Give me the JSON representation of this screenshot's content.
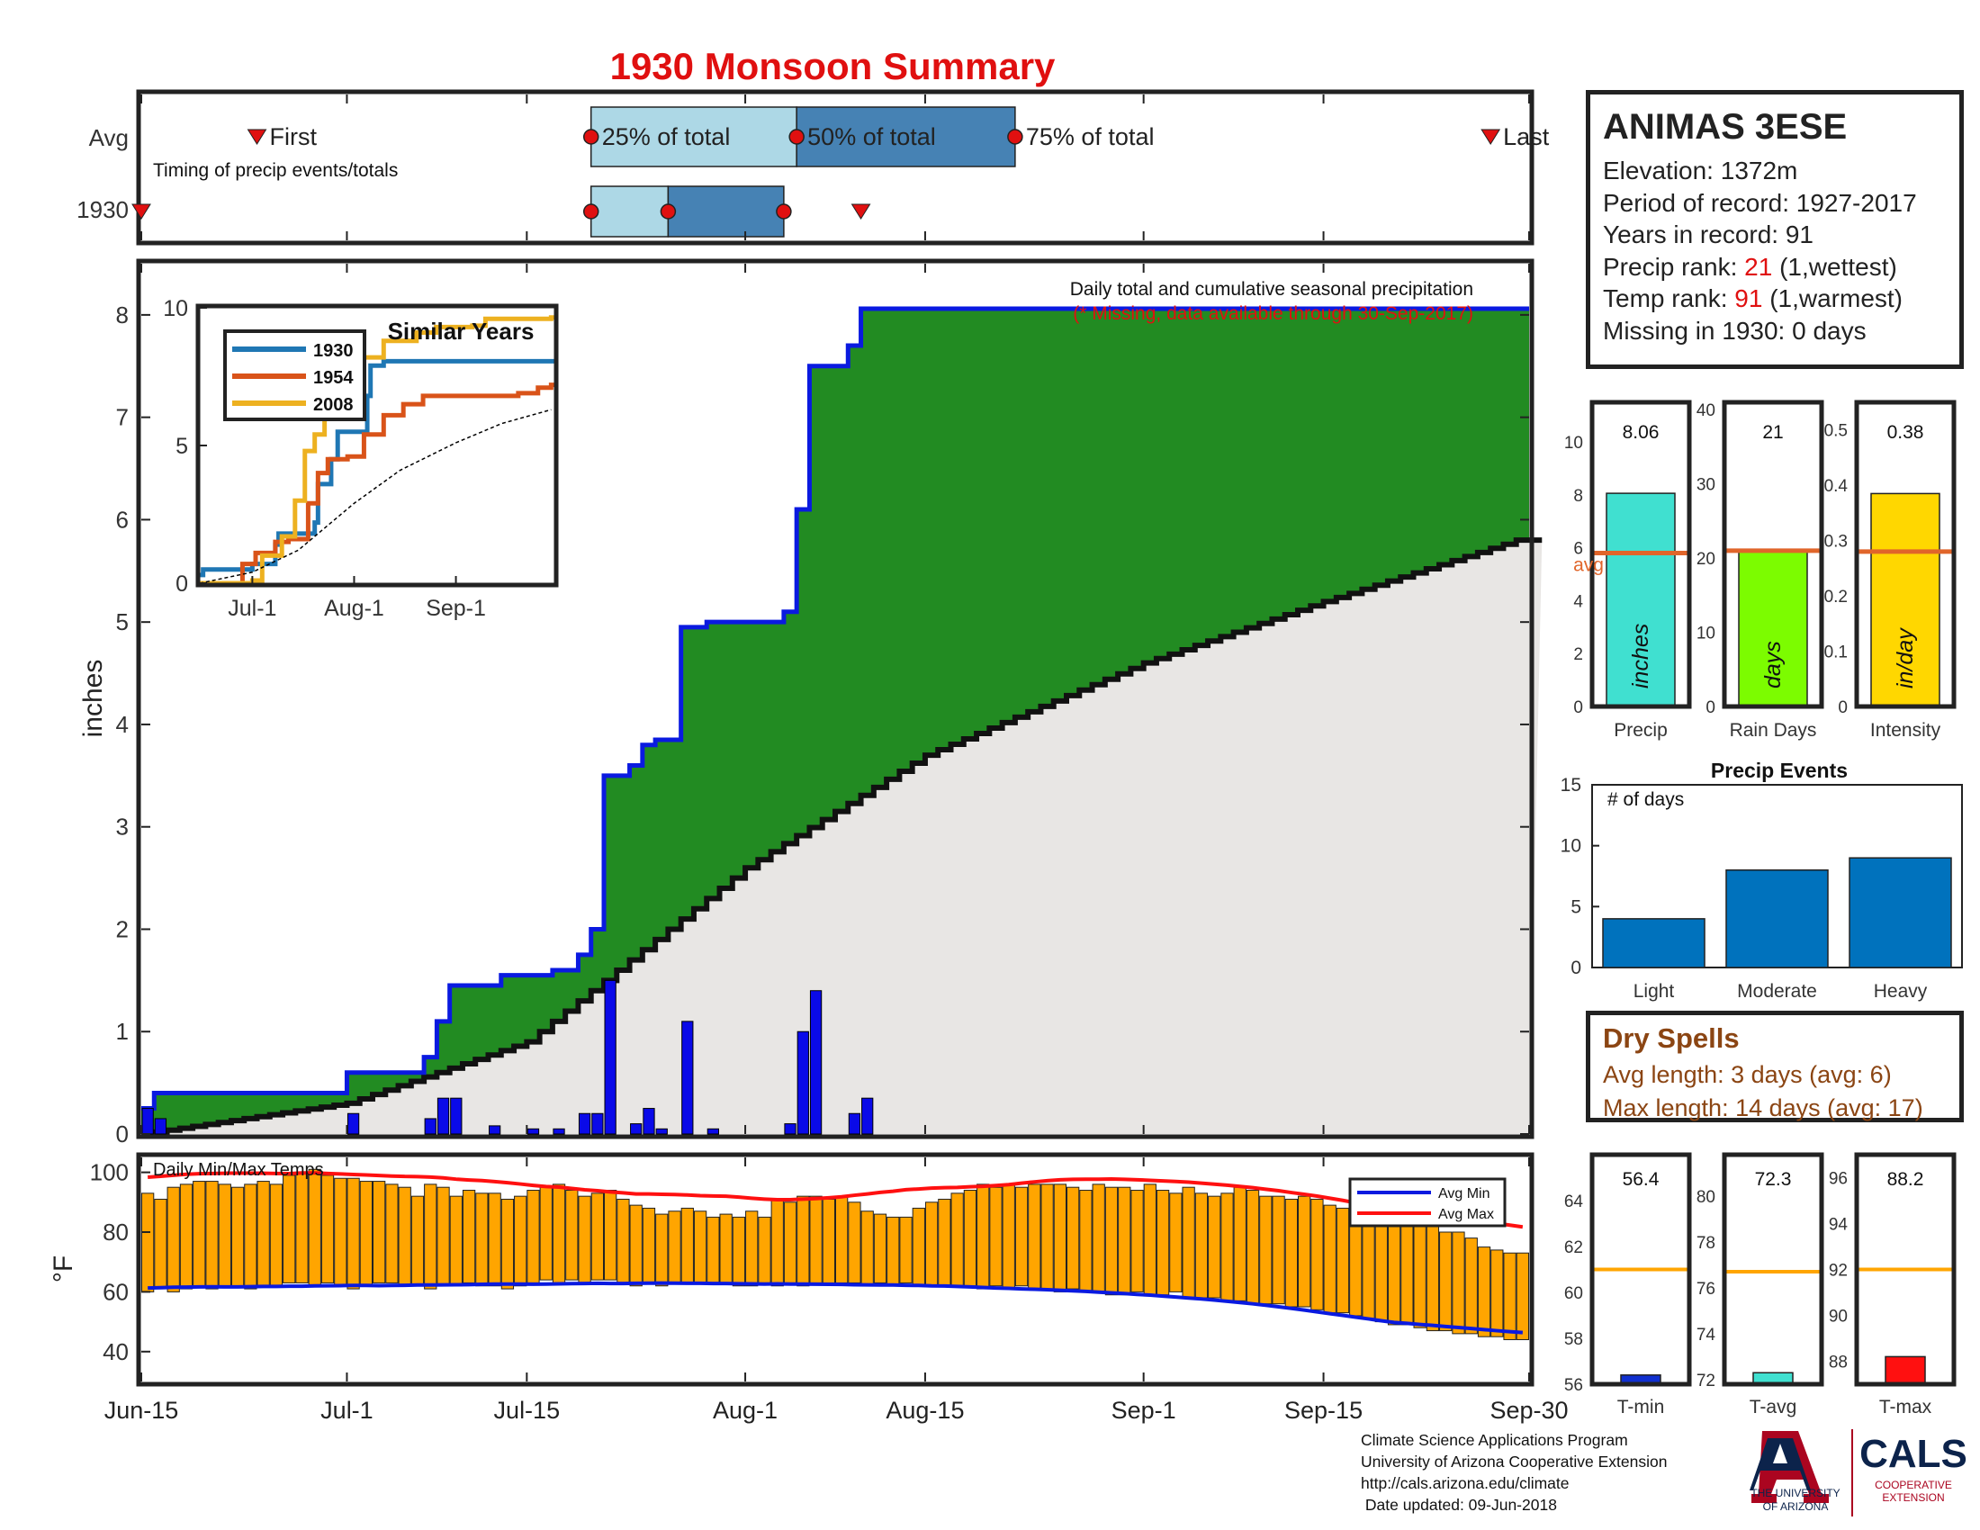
{
  "title": "1930 Monsoon Summary",
  "timing_panel": {
    "row_labels": [
      "Avg",
      "1930"
    ],
    "caption": "Timing of precip events/totals",
    "first_label": "First",
    "last_label": "Last",
    "pct_labels": [
      "25% of total",
      "50% of total",
      "75% of total"
    ],
    "avg": {
      "first": "2017-06-24",
      "p25": "2017-07-20",
      "p50": "2017-08-05",
      "p75": "2017-08-22",
      "last": "2017-09-28"
    },
    "year": {
      "first": "2017-06-15",
      "p25": "2017-07-20",
      "p50": "2017-07-26",
      "p75": "2017-08-04",
      "last": "2017-08-10"
    }
  },
  "station": {
    "name": "ANIMAS 3ESE",
    "elevation_label": "Elevation: 1372m",
    "period_label": "Period of record: 1927-2017",
    "years_label": "Years in record: 91",
    "precip_rank_prefix": "Precip rank: ",
    "precip_rank": "21",
    "precip_rank_suffix": " (1,wettest)",
    "temp_rank_prefix": "Temp rank: ",
    "temp_rank": "91",
    "temp_rank_suffix": " (1,warmest)",
    "missing_label": "Missing in 1930: 0 days"
  },
  "main_panel": {
    "ylabel": "inches",
    "caption": "Daily total and cumulative seasonal precipitation",
    "caption_missing": "(* Missing, data available through 30-Sep-2017)",
    "ylim": [
      0,
      8.5
    ],
    "yticks": [
      0,
      1,
      2,
      3,
      4,
      5,
      6,
      7,
      8
    ]
  },
  "inset": {
    "title": "Similar Years",
    "yticks": [
      0,
      5,
      10
    ],
    "xticks": [
      "Jul-1",
      "Aug-1",
      "Sep-1"
    ],
    "legend": [
      "1930",
      "1954",
      "2008"
    ]
  },
  "temp_panel": {
    "caption": "Daily Min/Max Temps",
    "ylabel": "°F",
    "yticks": [
      40,
      60,
      80,
      100
    ],
    "ylim": [
      30,
      105
    ],
    "legend": [
      "Avg Min",
      "Avg Max"
    ]
  },
  "x_axis": {
    "ticks": [
      "Jun-15",
      "Jul-1",
      "Jul-15",
      "Aug-1",
      "Aug-15",
      "Sep-1",
      "Sep-15",
      "Sep-30"
    ]
  },
  "stat_bars": [
    {
      "value_label": "8.06",
      "value": 8.06,
      "avg": 5.8,
      "ylim": [
        0,
        11.5
      ],
      "yticks": [
        "0",
        "2",
        "4",
        "6",
        "8",
        "10"
      ],
      "unit": "inches",
      "xlabel": "Precip",
      "avg_label": "avg",
      "color": "#40e0d0"
    },
    {
      "value_label": "21",
      "value": 21,
      "avg": 21,
      "ylim": [
        0,
        41
      ],
      "yticks": [
        "0",
        "10",
        "20",
        "30",
        "40"
      ],
      "unit": "days",
      "xlabel": "Rain Days",
      "color": "#7cfc00"
    },
    {
      "value_label": "0.38",
      "value": 0.385,
      "avg": 0.28,
      "ylim": [
        0,
        0.55
      ],
      "yticks": [
        "0",
        "0.1",
        "0.2",
        "0.3",
        "0.4",
        "0.5"
      ],
      "unit": "in/day",
      "xlabel": "Intensity",
      "color": "#ffd700"
    }
  ],
  "precip_events": {
    "title": "Precip Events",
    "ylabel_note": "# of days",
    "categories": [
      "Light",
      "Moderate",
      "Heavy"
    ],
    "values": [
      4,
      8,
      9
    ],
    "yticks": [
      0,
      5,
      10,
      15
    ]
  },
  "dry_spells": {
    "title": "Dry Spells",
    "avg_line": "Avg length: 3 days (avg: 6)",
    "max_line": "Max length: 14 days (avg: 17)"
  },
  "temp_bars": [
    {
      "value_label": "56.4",
      "value": 56.4,
      "avg": 61.0,
      "ylim": [
        56,
        66
      ],
      "yticks": [
        "56",
        "58",
        "60",
        "62",
        "64"
      ],
      "xlabel": "T-min",
      "color": "#1030d0"
    },
    {
      "value_label": "72.3",
      "value": 72.3,
      "avg": 76.7,
      "ylim": [
        71.8,
        81.8
      ],
      "yticks": [
        "72",
        "74",
        "76",
        "78",
        "80"
      ],
      "xlabel": "T-avg",
      "color": "#40e0d0"
    },
    {
      "value_label": "88.2",
      "value": 88.2,
      "avg": 92.0,
      "ylim": [
        87,
        97
      ],
      "yticks": [
        "88",
        "90",
        "92",
        "94",
        "96"
      ],
      "xlabel": "T-max",
      "color": "#ff1010"
    }
  ],
  "credits": [
    "Climate Science Applications Program",
    "University of Arizona Cooperative Extension",
    "http://cals.arizona.edu/climate",
    " Date updated: 09-Jun-2018"
  ],
  "logos": {
    "ua_text": [
      "THE UNIVERSITY",
      "OF ARIZONA"
    ],
    "cals_text": [
      "CALS",
      "COOPERATIVE",
      "EXTENSION"
    ]
  },
  "colors": {
    "accent_red": "#e01010",
    "cum_green": "#228b22",
    "cum_blue": "#0a1ae0",
    "avg_gray": "#e8e6e4",
    "temp_bar": "#ffa500",
    "avg_orange": "#e0652a"
  },
  "chart_data": [
    {
      "type": "area",
      "title": "1930 Monsoon Summary",
      "ylabel": "inches",
      "x_start": "2017-06-15",
      "x_end": "2017-09-30",
      "series": [
        {
          "name": "1930 cumulative",
          "steps": [
            [
              "2017-06-15",
              0.25
            ],
            [
              "2017-06-16",
              0.4
            ],
            [
              "2017-07-01",
              0.6
            ],
            [
              "2017-07-07",
              0.75
            ],
            [
              "2017-07-08",
              1.1
            ],
            [
              "2017-07-09",
              1.45
            ],
            [
              "2017-07-13",
              1.55
            ],
            [
              "2017-07-17",
              1.6
            ],
            [
              "2017-07-19",
              1.75
            ],
            [
              "2017-07-20",
              2.0
            ],
            [
              "2017-07-21",
              3.5
            ],
            [
              "2017-07-23",
              3.6
            ],
            [
              "2017-07-24",
              3.8
            ],
            [
              "2017-07-25",
              3.85
            ],
            [
              "2017-07-27",
              4.95
            ],
            [
              "2017-07-29",
              5.0
            ],
            [
              "2017-08-04",
              5.1
            ],
            [
              "2017-08-05",
              6.1
            ],
            [
              "2017-08-06",
              7.5
            ],
            [
              "2017-08-09",
              7.7
            ],
            [
              "2017-08-10",
              8.06
            ],
            [
              "2017-09-30",
              8.06
            ]
          ]
        },
        {
          "name": "avg cumulative",
          "points": [
            [
              "2017-06-15",
              0.0
            ],
            [
              "2017-07-01",
              0.3
            ],
            [
              "2017-07-15",
              0.9
            ],
            [
              "2017-07-20",
              1.4
            ],
            [
              "2017-08-01",
              2.6
            ],
            [
              "2017-08-15",
              3.7
            ],
            [
              "2017-09-01",
              4.6
            ],
            [
              "2017-09-15",
              5.2
            ],
            [
              "2017-09-30",
              5.8
            ]
          ]
        }
      ],
      "daily_precip": [
        [
          "2017-06-15",
          0.25
        ],
        [
          "2017-06-16",
          0.15
        ],
        [
          "2017-07-01",
          0.2
        ],
        [
          "2017-07-07",
          0.15
        ],
        [
          "2017-07-08",
          0.35
        ],
        [
          "2017-07-09",
          0.35
        ],
        [
          "2017-07-12",
          0.08
        ],
        [
          "2017-07-15",
          0.05
        ],
        [
          "2017-07-17",
          0.05
        ],
        [
          "2017-07-19",
          0.2
        ],
        [
          "2017-07-20",
          0.2
        ],
        [
          "2017-07-21",
          1.5
        ],
        [
          "2017-07-23",
          0.1
        ],
        [
          "2017-07-24",
          0.25
        ],
        [
          "2017-07-25",
          0.05
        ],
        [
          "2017-07-27",
          1.1
        ],
        [
          "2017-07-29",
          0.05
        ],
        [
          "2017-08-04",
          0.1
        ],
        [
          "2017-08-05",
          1.0
        ],
        [
          "2017-08-06",
          1.4
        ],
        [
          "2017-08-09",
          0.2
        ],
        [
          "2017-08-10",
          0.35
        ]
      ]
    },
    {
      "type": "line",
      "title": "Similar Years",
      "ylim": [
        0,
        10
      ],
      "x_start": "2017-06-15",
      "x_end": "2017-09-30",
      "series": [
        {
          "name": "1930",
          "color": "#1f77b4",
          "steps": [
            [
              "2017-06-15",
              0.3
            ],
            [
              "2017-06-16",
              0.5
            ],
            [
              "2017-07-01",
              0.7
            ],
            [
              "2017-07-08",
              1.4
            ],
            [
              "2017-07-09",
              1.8
            ],
            [
              "2017-07-20",
              2.2
            ],
            [
              "2017-07-21",
              3.6
            ],
            [
              "2017-07-25",
              4.5
            ],
            [
              "2017-07-27",
              5.5
            ],
            [
              "2017-08-05",
              6.8
            ],
            [
              "2017-08-06",
              7.9
            ],
            [
              "2017-08-10",
              8.06
            ],
            [
              "2017-09-30",
              8.06
            ]
          ]
        },
        {
          "name": "1954",
          "color": "#d95319",
          "steps": [
            [
              "2017-06-15",
              0.0
            ],
            [
              "2017-06-28",
              0.7
            ],
            [
              "2017-07-02",
              1.1
            ],
            [
              "2017-07-08",
              1.5
            ],
            [
              "2017-07-12",
              1.6
            ],
            [
              "2017-07-18",
              2.9
            ],
            [
              "2017-07-21",
              4.0
            ],
            [
              "2017-07-24",
              4.5
            ],
            [
              "2017-07-30",
              4.6
            ],
            [
              "2017-08-04",
              5.4
            ],
            [
              "2017-08-10",
              6.1
            ],
            [
              "2017-08-16",
              6.5
            ],
            [
              "2017-08-22",
              6.8
            ],
            [
              "2017-09-10",
              6.8
            ],
            [
              "2017-09-20",
              6.9
            ],
            [
              "2017-09-26",
              7.1
            ],
            [
              "2017-09-30",
              7.2
            ]
          ]
        },
        {
          "name": "2008",
          "color": "#edb120",
          "steps": [
            [
              "2017-06-15",
              0.0
            ],
            [
              "2017-07-01",
              0.1
            ],
            [
              "2017-07-04",
              1.0
            ],
            [
              "2017-07-10",
              1.7
            ],
            [
              "2017-07-14",
              3.0
            ],
            [
              "2017-07-17",
              4.8
            ],
            [
              "2017-07-20",
              5.4
            ],
            [
              "2017-07-23",
              6.8
            ],
            [
              "2017-07-27",
              7.8
            ],
            [
              "2017-08-04",
              8.2
            ],
            [
              "2017-08-10",
              8.8
            ],
            [
              "2017-08-20",
              9.1
            ],
            [
              "2017-08-26",
              9.3
            ],
            [
              "2017-09-06",
              9.35
            ],
            [
              "2017-09-10",
              9.6
            ],
            [
              "2017-09-30",
              9.65
            ]
          ]
        },
        {
          "name": "avg",
          "color": "#000000",
          "points": [
            [
              "2017-06-15",
              0.0
            ],
            [
              "2017-07-01",
              0.4
            ],
            [
              "2017-07-15",
              1.2
            ],
            [
              "2017-08-01",
              2.9
            ],
            [
              "2017-08-15",
              4.1
            ],
            [
              "2017-09-01",
              5.1
            ],
            [
              "2017-09-15",
              5.8
            ],
            [
              "2017-09-30",
              6.3
            ]
          ]
        }
      ]
    },
    {
      "type": "bar",
      "title": "Daily Min/Max Temps",
      "ylabel": "°F",
      "ylim": [
        30,
        105
      ],
      "x_start": "2017-06-15",
      "x_end": "2017-09-30",
      "tmin": [
        60,
        61,
        60,
        61,
        62,
        61,
        62,
        62,
        61,
        62,
        62,
        63,
        63,
        62,
        63,
        62,
        61,
        62,
        63,
        63,
        62,
        62,
        61,
        62,
        62,
        63,
        62,
        62,
        61,
        62,
        63,
        64,
        63,
        64,
        63,
        64,
        64,
        63,
        62,
        63,
        62,
        63,
        63,
        63,
        63,
        63,
        62,
        62,
        63,
        62,
        63,
        62,
        63,
        63,
        63,
        63,
        62,
        63,
        62,
        63,
        62,
        62,
        62,
        62,
        62,
        61,
        62,
        61,
        62,
        61,
        61,
        60,
        61,
        60,
        60,
        59,
        59,
        60,
        59,
        59,
        60,
        58,
        58,
        58,
        57,
        57,
        56,
        56,
        56,
        55,
        55,
        54,
        53,
        53,
        52,
        51,
        50,
        49,
        49,
        48,
        47,
        47,
        46,
        46,
        45,
        45,
        44,
        44
      ],
      "tmax": [
        93,
        91,
        95,
        96,
        97,
        97,
        96,
        95,
        96,
        97,
        96,
        99,
        100,
        101,
        99,
        98,
        98,
        97,
        97,
        96,
        95,
        92,
        96,
        95,
        92,
        94,
        93,
        93,
        91,
        92,
        94,
        95,
        96,
        94,
        92,
        93,
        94,
        91,
        89,
        88,
        86,
        87,
        88,
        87,
        85,
        86,
        85,
        87,
        85,
        91,
        90,
        92,
        92,
        91,
        92,
        90,
        87,
        86,
        85,
        85,
        88,
        90,
        91,
        93,
        94,
        96,
        95,
        96,
        95,
        96,
        96,
        96,
        95,
        94,
        96,
        95,
        95,
        94,
        96,
        94,
        93,
        95,
        93,
        92,
        93,
        95,
        94,
        92,
        92,
        91,
        92,
        91,
        89,
        88,
        87,
        87,
        86,
        84,
        84,
        83,
        82,
        80,
        80,
        78,
        75,
        74,
        73,
        73
      ]
    },
    {
      "type": "bar",
      "title": "Precip Events",
      "categories": [
        "Light",
        "Moderate",
        "Heavy"
      ],
      "values": [
        4,
        8,
        9
      ],
      "ylim": [
        0,
        15
      ]
    }
  ]
}
